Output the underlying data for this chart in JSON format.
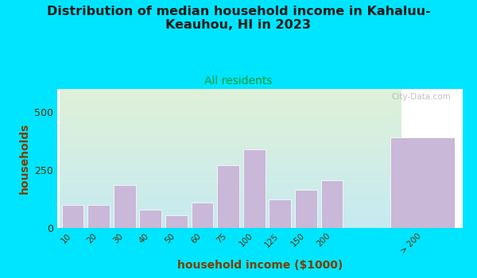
{
  "title": "Distribution of median household income in Kahaluu-\nKeauhou, HI in 2023",
  "subtitle": "All residents",
  "xlabel": "household income ($1000)",
  "ylabel": "households",
  "categories": [
    "10",
    "20",
    "30",
    "40",
    "50",
    "60",
    "75",
    "100",
    "125",
    "150",
    "200",
    "> 200"
  ],
  "values": [
    100,
    100,
    185,
    80,
    55,
    110,
    270,
    340,
    125,
    165,
    205,
    390
  ],
  "bar_color": "#c9b8d8",
  "bar_edge_color": "#ffffff",
  "background_outer": "#00e5ff",
  "background_inner_top_color": "#dff0d8",
  "background_inner_bottom_color": "#c5eaf0",
  "title_color": "#1a1a1a",
  "subtitle_color": "#009933",
  "axis_label_color": "#7b3f00",
  "tick_color": "#5a3010",
  "ylim": [
    0,
    600
  ],
  "yticks": [
    0,
    250,
    500
  ],
  "watermark": "City-Data.com",
  "title_fontsize": 11.5,
  "subtitle_fontsize": 10,
  "label_fontsize": 10
}
